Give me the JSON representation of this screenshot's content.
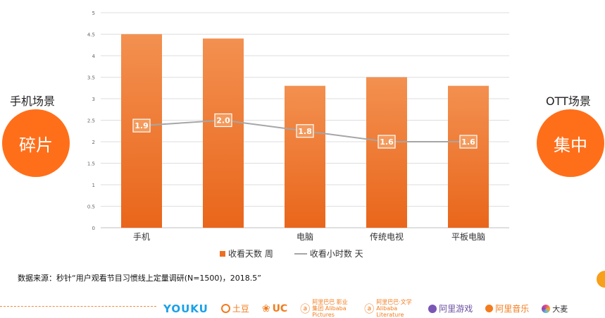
{
  "left_panel": {
    "title": "手机场景",
    "badge": "碎片"
  },
  "right_panel": {
    "title": "OTT场景",
    "badge": "集中"
  },
  "chart_data": {
    "type": "bar",
    "categories": [
      "手机",
      "",
      "电脑",
      "传统电视",
      "平板电脑"
    ],
    "series": [
      {
        "name": "收看天数 周",
        "type": "bar",
        "values": [
          4.5,
          4.4,
          3.3,
          3.5,
          3.3
        ]
      },
      {
        "name": "收看小时数 天",
        "type": "line",
        "values": [
          1.9,
          2.0,
          1.8,
          1.6,
          1.6
        ]
      }
    ],
    "data_labels": [
      "1.9",
      "2.0",
      "1.8",
      "1.6",
      "1.6"
    ],
    "yticks": [
      "0",
      "0.5",
      "1",
      "1.5",
      "2",
      "2.5",
      "3",
      "3.5",
      "4",
      "4.5",
      "5"
    ],
    "ylim": [
      0,
      5
    ],
    "line_ylim": [
      0,
      4
    ],
    "grid": true,
    "legend_position": "bottom",
    "colors": {
      "bar": "#ee6f22",
      "bar_top": "#f39050",
      "line": "#a6a6a6"
    }
  },
  "legend": {
    "bar_label": "收看天数 周",
    "line_label": "收看小时数 天"
  },
  "source_note": "数据来源：秒针“用户观看节目习惯线上定量调研(N=1500)，2018.5”",
  "logos": [
    {
      "icon": "youku-logo",
      "text": "YOUKU"
    },
    {
      "icon": "tudou-logo",
      "text": "土豆"
    },
    {
      "icon": "uc-logo",
      "text": "UC"
    },
    {
      "icon": "alibaba-pictures-logo",
      "text": "阿里巴巴 影业集团 Alibaba Pictures"
    },
    {
      "icon": "alibaba-literature-logo",
      "text": "阿里巴巴·文学 Alibaba Literature"
    },
    {
      "icon": "ali-games-logo",
      "text": "阿里游戏"
    },
    {
      "icon": "ali-music-logo",
      "text": "阿里音乐"
    },
    {
      "icon": "damai-logo",
      "text": "大麦"
    }
  ]
}
